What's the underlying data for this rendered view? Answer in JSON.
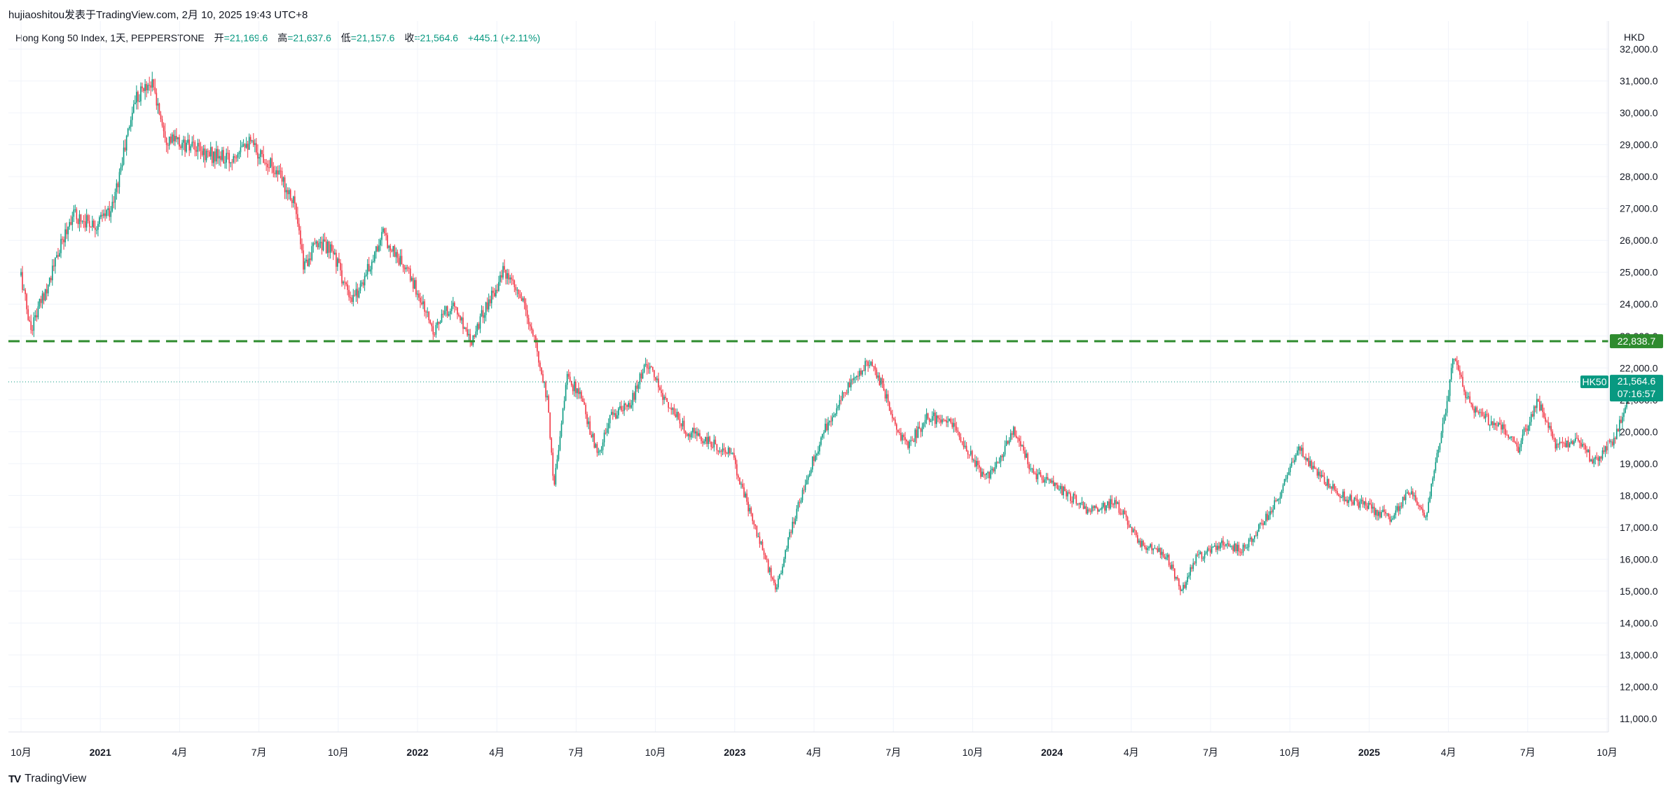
{
  "header": {
    "publish_line": "hujiaoshitou发表于TradingView.com, 2月 10, 2025 19:43 UTC+8"
  },
  "legend": {
    "symbol_line": "Hong Kong 50 Index, 1天, PEPPERSTONE",
    "open_label": "开",
    "open_value": "=21,169.6",
    "high_label": "高",
    "high_value": "=21,637.6",
    "low_label": "低",
    "low_value": "=21,157.6",
    "close_label": "收",
    "close_value": "=21,564.6",
    "change": "+445.1 (+2.11%)"
  },
  "currency": "HKD",
  "footer": {
    "brand": "TradingView"
  },
  "colors": {
    "up": "#089981",
    "down": "#f23645",
    "level": "#2e8b2e",
    "grid": "#f0f3fa"
  },
  "chart_data": {
    "type": "candlestick",
    "y_ticks": [
      "11,000.0",
      "12,000.0",
      "13,000.0",
      "14,000.0",
      "15,000.0",
      "16,000.0",
      "17,000.0",
      "18,000.0",
      "19,000.0",
      "20,000.0",
      "21,000.0",
      "22,000.0",
      "23,000.0",
      "24,000.0",
      "25,000.0",
      "26,000.0",
      "27,000.0",
      "28,000.0",
      "29,000.0",
      "30,000.0",
      "31,000.0",
      "32,000.0"
    ],
    "x_ticks": [
      {
        "label": "10月",
        "bold": false
      },
      {
        "label": "2021",
        "bold": true
      },
      {
        "label": "4月",
        "bold": false
      },
      {
        "label": "7月",
        "bold": false
      },
      {
        "label": "10月",
        "bold": false
      },
      {
        "label": "2022",
        "bold": true
      },
      {
        "label": "4月",
        "bold": false
      },
      {
        "label": "7月",
        "bold": false
      },
      {
        "label": "10月",
        "bold": false
      },
      {
        "label": "2023",
        "bold": true
      },
      {
        "label": "4月",
        "bold": false
      },
      {
        "label": "7月",
        "bold": false
      },
      {
        "label": "10月",
        "bold": false
      },
      {
        "label": "2024",
        "bold": true
      },
      {
        "label": "4月",
        "bold": false
      },
      {
        "label": "7月",
        "bold": false
      },
      {
        "label": "10月",
        "bold": false
      },
      {
        "label": "2025",
        "bold": true
      },
      {
        "label": "4月",
        "bold": false
      },
      {
        "label": "7月",
        "bold": false
      },
      {
        "label": "10月",
        "bold": false
      }
    ],
    "horizontal_level": {
      "value": 22838.7,
      "label": "22,838.7",
      "style": "dashed"
    },
    "last_price": {
      "symbol": "HK50",
      "value": 21564.6,
      "label": "21,564.6",
      "countdown": "07:16:57"
    },
    "series_path_t_price": [
      [
        0,
        24900
      ],
      [
        0.03,
        23200
      ],
      [
        0.09,
        24800
      ],
      [
        0.16,
        26800
      ],
      [
        0.24,
        26500
      ],
      [
        0.29,
        27100
      ],
      [
        0.36,
        30500
      ],
      [
        0.41,
        31000
      ],
      [
        0.46,
        29200
      ],
      [
        0.56,
        28800
      ],
      [
        0.66,
        28500
      ],
      [
        0.7,
        29200
      ],
      [
        0.79,
        28400
      ],
      [
        0.86,
        27300
      ],
      [
        0.89,
        25200
      ],
      [
        0.94,
        26000
      ],
      [
        0.99,
        25500
      ],
      [
        1.04,
        24000
      ],
      [
        1.09,
        25000
      ],
      [
        1.14,
        26200
      ],
      [
        1.23,
        24800
      ],
      [
        1.3,
        23200
      ],
      [
        1.36,
        24000
      ],
      [
        1.42,
        22900
      ],
      [
        1.46,
        23800
      ],
      [
        1.52,
        25000
      ],
      [
        1.58,
        24100
      ],
      [
        1.62,
        22800
      ],
      [
        1.66,
        21000
      ],
      [
        1.68,
        18300
      ],
      [
        1.72,
        21700
      ],
      [
        1.76,
        21200
      ],
      [
        1.82,
        19200
      ],
      [
        1.86,
        20500
      ],
      [
        1.92,
        20800
      ],
      [
        1.97,
        22200
      ],
      [
        2.02,
        21200
      ],
      [
        2.09,
        20100
      ],
      [
        2.16,
        19700
      ],
      [
        2.24,
        19300
      ],
      [
        2.32,
        16800
      ],
      [
        2.38,
        15000
      ],
      [
        2.43,
        17000
      ],
      [
        2.48,
        18700
      ],
      [
        2.54,
        20200
      ],
      [
        2.6,
        21300
      ],
      [
        2.68,
        22300
      ],
      [
        2.73,
        21000
      ],
      [
        2.79,
        19500
      ],
      [
        2.86,
        20500
      ],
      [
        2.94,
        20200
      ],
      [
        3.04,
        18500
      ],
      [
        3.09,
        19300
      ],
      [
        3.13,
        20100
      ],
      [
        3.19,
        18700
      ],
      [
        3.29,
        18100
      ],
      [
        3.37,
        17500
      ],
      [
        3.45,
        17800
      ],
      [
        3.53,
        16500
      ],
      [
        3.61,
        16100
      ],
      [
        3.66,
        15000
      ],
      [
        3.7,
        16000
      ],
      [
        3.78,
        16500
      ],
      [
        3.85,
        16300
      ],
      [
        3.92,
        17200
      ],
      [
        3.98,
        18300
      ],
      [
        4.03,
        19500
      ],
      [
        4.09,
        18600
      ],
      [
        4.16,
        18000
      ],
      [
        4.23,
        17700
      ],
      [
        4.32,
        17300
      ],
      [
        4.38,
        18200
      ],
      [
        4.43,
        17300
      ],
      [
        4.49,
        20700
      ],
      [
        4.52,
        22500
      ],
      [
        4.55,
        21200
      ],
      [
        4.6,
        20500
      ],
      [
        4.66,
        20200
      ],
      [
        4.72,
        19500
      ],
      [
        4.78,
        21000
      ],
      [
        4.84,
        19500
      ],
      [
        4.91,
        19800
      ],
      [
        4.96,
        19000
      ],
      [
        5.03,
        19900
      ],
      [
        5.08,
        21564.6
      ]
    ]
  }
}
